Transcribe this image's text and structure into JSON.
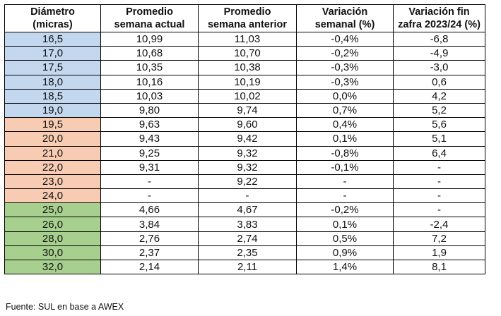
{
  "table": {
    "headers": [
      [
        "Diámetro",
        "(micras)"
      ],
      [
        "Promedio",
        "semana actual"
      ],
      [
        "Promedio",
        "semana anterior"
      ],
      [
        "Variación",
        "semanal (%)"
      ],
      [
        "Variación fin",
        "zafra 2023/24 (%)"
      ]
    ],
    "group_colors": {
      "blue": "#c3d8ee",
      "peach": "#f8ccb3",
      "green": "#a7d08f"
    },
    "rows": [
      {
        "group": "blue",
        "cells": [
          "16,5",
          "10,99",
          "11,03",
          "-0,4%",
          "-6,8"
        ]
      },
      {
        "group": "blue",
        "cells": [
          "17,0",
          "10,68",
          "10,70",
          "-0,2%",
          "-4,9"
        ]
      },
      {
        "group": "blue",
        "cells": [
          "17,5",
          "10,35",
          "10,38",
          "-0,3%",
          "-3,0"
        ]
      },
      {
        "group": "blue",
        "cells": [
          "18,0",
          "10,16",
          "10,19",
          "-0,3%",
          "0,6"
        ]
      },
      {
        "group": "blue",
        "cells": [
          "18,5",
          "10,03",
          "10,02",
          "0,0%",
          "4,2"
        ]
      },
      {
        "group": "blue",
        "cells": [
          "19,0",
          "9,80",
          "9,74",
          "0,7%",
          "5,2"
        ]
      },
      {
        "group": "peach",
        "cells": [
          "19,5",
          "9,63",
          "9,60",
          "0,4%",
          "5,6"
        ]
      },
      {
        "group": "peach",
        "cells": [
          "20,0",
          "9,43",
          "9,42",
          "0,1%",
          "5,1"
        ]
      },
      {
        "group": "peach",
        "cells": [
          "21,0",
          "9,25",
          "9,32",
          "-0,8%",
          "6,4"
        ]
      },
      {
        "group": "peach",
        "cells": [
          "22,0",
          "9,31",
          "9,32",
          "-0,1%",
          "-"
        ]
      },
      {
        "group": "peach",
        "cells": [
          "23,0",
          "-",
          "9,22",
          "-",
          "-"
        ]
      },
      {
        "group": "peach",
        "cells": [
          "24,0",
          "-",
          "-",
          "-",
          "-"
        ]
      },
      {
        "group": "green",
        "cells": [
          "25,0",
          "4,66",
          "4,67",
          "-0,2%",
          "-"
        ]
      },
      {
        "group": "green",
        "cells": [
          "26,0",
          "3,84",
          "3,83",
          "0,1%",
          "-2,4"
        ]
      },
      {
        "group": "green",
        "cells": [
          "28,0",
          "2,76",
          "2,74",
          "0,5%",
          "7,2"
        ]
      },
      {
        "group": "green",
        "cells": [
          "30,0",
          "2,37",
          "2,35",
          "0,9%",
          "1,9"
        ]
      },
      {
        "group": "green",
        "cells": [
          "32,0",
          "2,14",
          "2,11",
          "1,4%",
          "8,1"
        ]
      }
    ]
  },
  "source": "Fuente: SUL en base a AWEX"
}
